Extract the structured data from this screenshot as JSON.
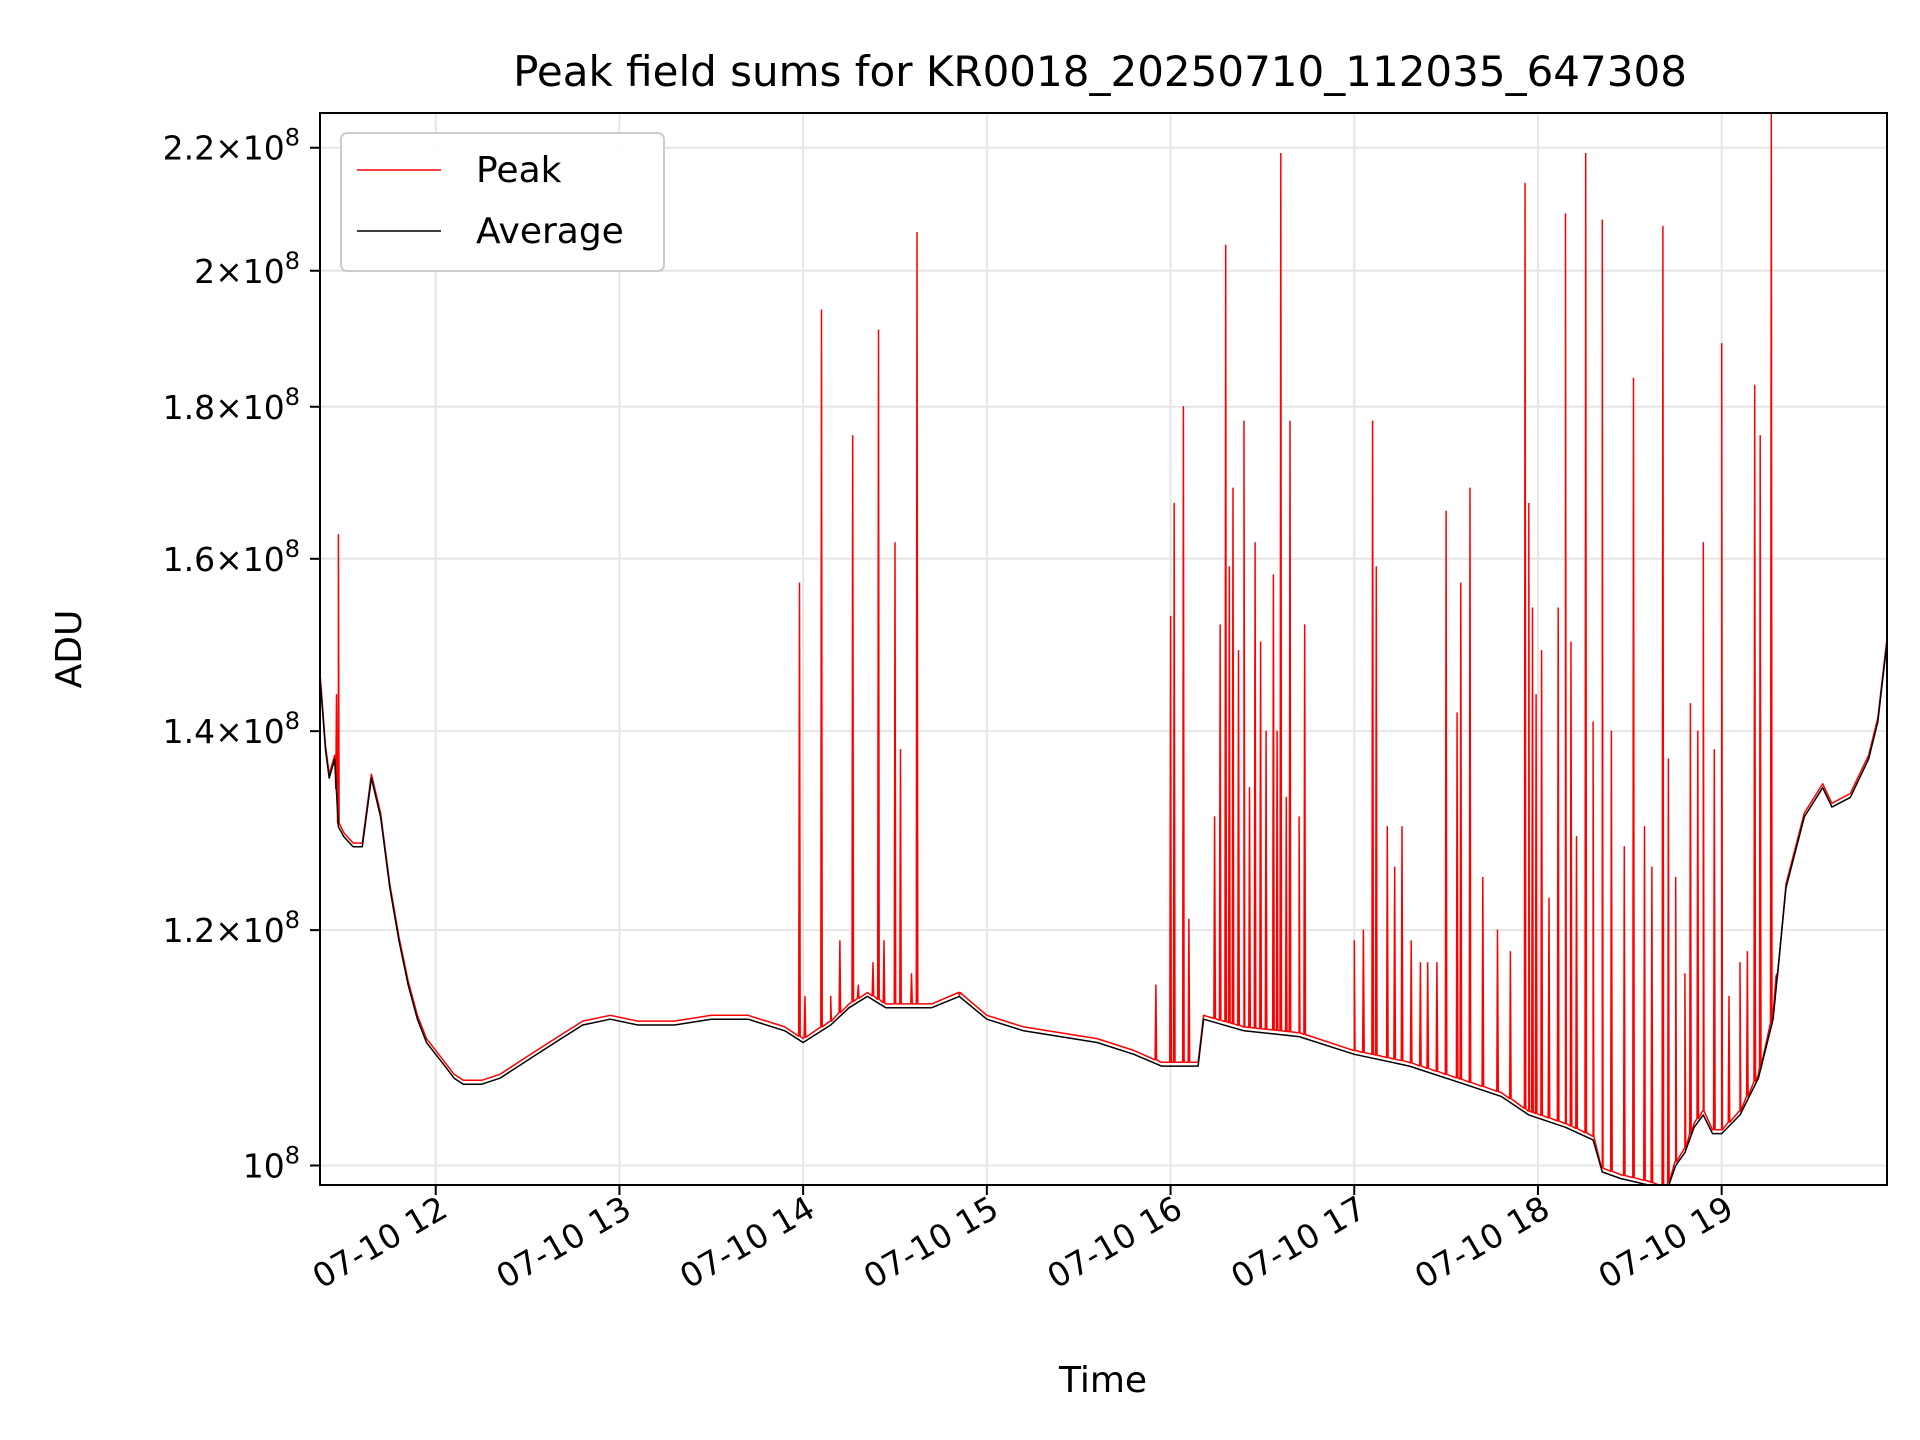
{
  "chart_data": {
    "type": "line",
    "title": "Peak field sums for KR0018_20250710_112035_647308",
    "xlabel": "Time",
    "ylabel": "ADU",
    "x_unit": "time of day on 2025-07-10 (decimal hours)",
    "xlim": [
      11.37,
      19.9
    ],
    "ylim": [
      98500000,
      226000000
    ],
    "y_scale": "log",
    "grid": true,
    "legend_position": "upper-left",
    "x_ticks": [
      {
        "value": 12,
        "label": "07-10 12"
      },
      {
        "value": 13,
        "label": "07-10 13"
      },
      {
        "value": 14,
        "label": "07-10 14"
      },
      {
        "value": 15,
        "label": "07-10 15"
      },
      {
        "value": 16,
        "label": "07-10 16"
      },
      {
        "value": 17,
        "label": "07-10 17"
      },
      {
        "value": 18,
        "label": "07-10 18"
      },
      {
        "value": 19,
        "label": "07-10 19"
      }
    ],
    "y_ticks": [
      {
        "value": 100000000,
        "mantissa": "",
        "exponent": "8"
      },
      {
        "value": 120000000,
        "mantissa": "1.2",
        "exponent": "8"
      },
      {
        "value": 140000000,
        "mantissa": "1.4",
        "exponent": "8"
      },
      {
        "value": 160000000,
        "mantissa": "1.6",
        "exponent": "8"
      },
      {
        "value": 180000000,
        "mantissa": "1.8",
        "exponent": "8"
      },
      {
        "value": 200000000,
        "mantissa": "2",
        "exponent": "8"
      },
      {
        "value": 220000000,
        "mantissa": "2.2",
        "exponent": "8"
      }
    ],
    "series": [
      {
        "name": "Average",
        "color": "#000000",
        "x": [
          11.37,
          11.4,
          11.42,
          11.45,
          11.47,
          11.5,
          11.55,
          11.6,
          11.65,
          11.7,
          11.75,
          11.8,
          11.85,
          11.9,
          11.95,
          12.0,
          12.05,
          12.1,
          12.15,
          12.25,
          12.35,
          12.5,
          12.65,
          12.8,
          12.95,
          13.1,
          13.3,
          13.5,
          13.7,
          13.9,
          14.0,
          14.15,
          14.25,
          14.35,
          14.45,
          14.55,
          14.7,
          14.85,
          15.0,
          15.2,
          15.4,
          15.6,
          15.8,
          15.95,
          16.15,
          16.18,
          16.4,
          16.7,
          17.0,
          17.3,
          17.6,
          17.8,
          17.95,
          18.15,
          18.3,
          18.35,
          18.45,
          18.6,
          18.7,
          18.75,
          18.8,
          18.85,
          18.9,
          18.95,
          19.0,
          19.1,
          19.2,
          19.28,
          19.35,
          19.45,
          19.55,
          19.6,
          19.7,
          19.8,
          19.85,
          19.9
        ],
        "values": [
          146000000,
          138000000,
          135000000,
          137000000,
          130000000,
          129000000,
          128000000,
          128000000,
          135000000,
          131000000,
          124000000,
          119000000,
          115000000,
          112000000,
          110000000,
          109000000,
          108000000,
          107000000,
          106500000,
          106500000,
          107000000,
          108500000,
          110000000,
          111500000,
          112000000,
          111500000,
          111500000,
          112000000,
          112000000,
          111000000,
          110000000,
          111500000,
          113000000,
          114000000,
          113000000,
          113000000,
          113000000,
          114000000,
          112000000,
          111000000,
          110500000,
          110000000,
          109000000,
          108000000,
          108000000,
          112000000,
          111000000,
          110500000,
          109000000,
          108000000,
          106500000,
          105500000,
          104000000,
          103000000,
          102000000,
          99500000,
          99000000,
          98500000,
          98000000,
          100000000,
          101000000,
          103000000,
          104000000,
          102500000,
          102500000,
          104000000,
          107000000,
          112000000,
          124000000,
          131000000,
          134000000,
          132000000,
          133000000,
          137000000,
          141000000,
          150000000
        ]
      },
      {
        "name": "Peak",
        "color": "#ff0000",
        "spikes": [
          {
            "x": 11.47,
            "y": 163000000
          },
          {
            "x": 11.46,
            "y": 144000000
          },
          {
            "x": 13.98,
            "y": 157000000
          },
          {
            "x": 14.01,
            "y": 114000000
          },
          {
            "x": 14.1,
            "y": 194000000
          },
          {
            "x": 14.15,
            "y": 114000000
          },
          {
            "x": 14.2,
            "y": 119000000
          },
          {
            "x": 14.27,
            "y": 176000000
          },
          {
            "x": 14.3,
            "y": 115000000
          },
          {
            "x": 14.38,
            "y": 117000000
          },
          {
            "x": 14.41,
            "y": 191000000
          },
          {
            "x": 14.44,
            "y": 119000000
          },
          {
            "x": 14.5,
            "y": 162000000
          },
          {
            "x": 14.53,
            "y": 138000000
          },
          {
            "x": 14.59,
            "y": 116000000
          },
          {
            "x": 14.62,
            "y": 206000000
          },
          {
            "x": 14.85,
            "y": 114000000
          },
          {
            "x": 15.92,
            "y": 115000000
          },
          {
            "x": 16.0,
            "y": 153000000
          },
          {
            "x": 16.02,
            "y": 167000000
          },
          {
            "x": 16.07,
            "y": 180000000
          },
          {
            "x": 16.1,
            "y": 121000000
          },
          {
            "x": 16.24,
            "y": 131000000
          },
          {
            "x": 16.27,
            "y": 152000000
          },
          {
            "x": 16.3,
            "y": 204000000
          },
          {
            "x": 16.32,
            "y": 159000000
          },
          {
            "x": 16.34,
            "y": 169000000
          },
          {
            "x": 16.37,
            "y": 149000000
          },
          {
            "x": 16.4,
            "y": 178000000
          },
          {
            "x": 16.43,
            "y": 134000000
          },
          {
            "x": 16.46,
            "y": 162000000
          },
          {
            "x": 16.49,
            "y": 150000000
          },
          {
            "x": 16.52,
            "y": 140000000
          },
          {
            "x": 16.56,
            "y": 158000000
          },
          {
            "x": 16.58,
            "y": 140000000
          },
          {
            "x": 16.6,
            "y": 219000000
          },
          {
            "x": 16.63,
            "y": 133000000
          },
          {
            "x": 16.65,
            "y": 178000000
          },
          {
            "x": 16.7,
            "y": 131000000
          },
          {
            "x": 16.73,
            "y": 152000000
          },
          {
            "x": 17.0,
            "y": 119000000
          },
          {
            "x": 17.05,
            "y": 120000000
          },
          {
            "x": 17.1,
            "y": 178000000
          },
          {
            "x": 17.12,
            "y": 159000000
          },
          {
            "x": 17.18,
            "y": 130000000
          },
          {
            "x": 17.22,
            "y": 126000000
          },
          {
            "x": 17.26,
            "y": 130000000
          },
          {
            "x": 17.31,
            "y": 119000000
          },
          {
            "x": 17.36,
            "y": 117000000
          },
          {
            "x": 17.4,
            "y": 117000000
          },
          {
            "x": 17.45,
            "y": 117000000
          },
          {
            "x": 17.5,
            "y": 166000000
          },
          {
            "x": 17.56,
            "y": 142000000
          },
          {
            "x": 17.58,
            "y": 157000000
          },
          {
            "x": 17.63,
            "y": 169000000
          },
          {
            "x": 17.7,
            "y": 125000000
          },
          {
            "x": 17.78,
            "y": 120000000
          },
          {
            "x": 17.85,
            "y": 118000000
          },
          {
            "x": 17.93,
            "y": 214000000
          },
          {
            "x": 17.95,
            "y": 167000000
          },
          {
            "x": 17.97,
            "y": 154000000
          },
          {
            "x": 17.99,
            "y": 144000000
          },
          {
            "x": 18.02,
            "y": 149000000
          },
          {
            "x": 18.06,
            "y": 123000000
          },
          {
            "x": 18.11,
            "y": 154000000
          },
          {
            "x": 18.15,
            "y": 209000000
          },
          {
            "x": 18.18,
            "y": 150000000
          },
          {
            "x": 18.21,
            "y": 129000000
          },
          {
            "x": 18.26,
            "y": 219000000
          },
          {
            "x": 18.3,
            "y": 141000000
          },
          {
            "x": 18.35,
            "y": 208000000
          },
          {
            "x": 18.4,
            "y": 140000000
          },
          {
            "x": 18.47,
            "y": 128000000
          },
          {
            "x": 18.52,
            "y": 184000000
          },
          {
            "x": 18.58,
            "y": 130000000
          },
          {
            "x": 18.62,
            "y": 126000000
          },
          {
            "x": 18.68,
            "y": 207000000
          },
          {
            "x": 18.71,
            "y": 137000000
          },
          {
            "x": 18.75,
            "y": 125000000
          },
          {
            "x": 18.8,
            "y": 116000000
          },
          {
            "x": 18.83,
            "y": 143000000
          },
          {
            "x": 18.87,
            "y": 140000000
          },
          {
            "x": 18.9,
            "y": 162000000
          },
          {
            "x": 18.96,
            "y": 138000000
          },
          {
            "x": 19.0,
            "y": 189000000
          },
          {
            "x": 19.04,
            "y": 114000000
          },
          {
            "x": 19.1,
            "y": 117000000
          },
          {
            "x": 19.14,
            "y": 118000000
          },
          {
            "x": 19.18,
            "y": 183000000
          },
          {
            "x": 19.21,
            "y": 176000000
          },
          {
            "x": 19.27,
            "y": 226000000
          },
          {
            "x": 19.3,
            "y": 116000000
          }
        ]
      }
    ]
  }
}
